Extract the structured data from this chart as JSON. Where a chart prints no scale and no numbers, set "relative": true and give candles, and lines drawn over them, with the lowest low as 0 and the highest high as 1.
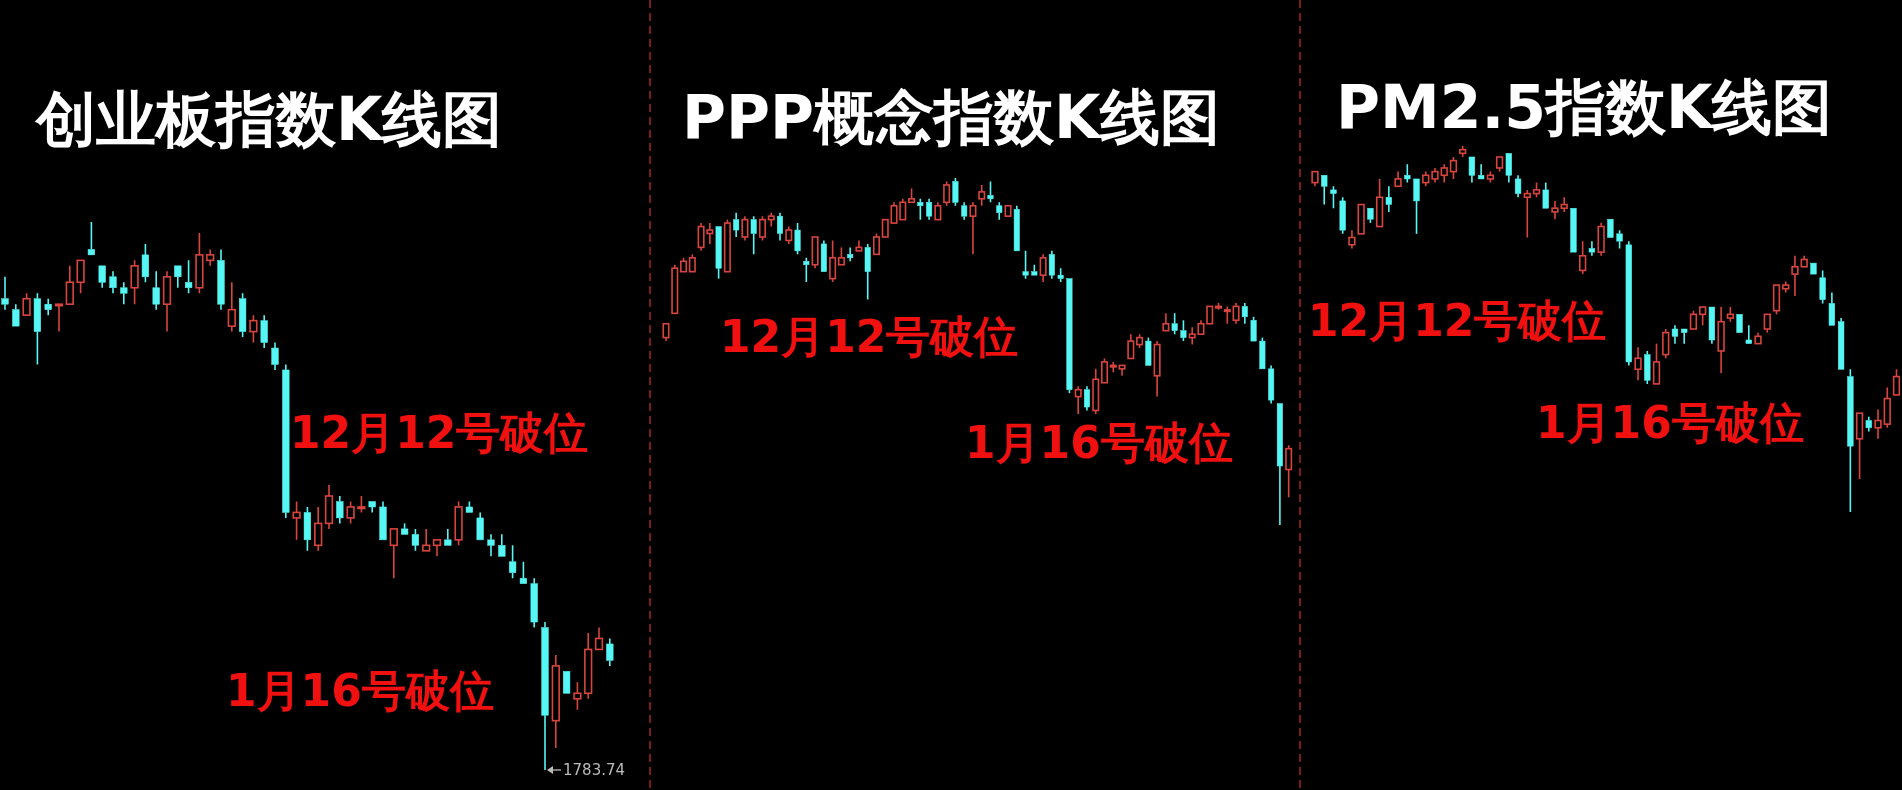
{
  "chart_data": [
    {
      "type": "candlestick",
      "title": "创业板指数K线图",
      "relative": true,
      "categories": [
        null,
        null,
        null,
        null,
        null,
        null,
        null,
        null,
        null,
        null,
        null,
        null,
        null,
        null,
        null,
        null,
        null,
        null,
        null,
        null,
        null,
        null,
        null,
        null,
        null,
        null,
        null,
        null,
        null,
        null,
        null,
        null,
        null,
        null,
        null,
        null,
        null,
        null,
        null,
        null,
        null,
        null,
        null,
        null,
        null,
        null,
        null,
        null,
        null,
        null,
        null,
        null,
        null,
        null,
        null,
        null,
        null
      ],
      "ohlc": [
        [
          0.86,
          0.9,
          0.84,
          0.85
        ],
        [
          0.84,
          0.85,
          0.81,
          0.81
        ],
        [
          0.83,
          0.87,
          0.83,
          0.86
        ],
        [
          0.86,
          0.87,
          0.74,
          0.8
        ],
        [
          0.85,
          0.86,
          0.83,
          0.84
        ],
        [
          0.85,
          0.85,
          0.8,
          0.85
        ],
        [
          0.85,
          0.92,
          0.85,
          0.89
        ],
        [
          0.89,
          0.93,
          0.87,
          0.93
        ],
        [
          0.95,
          1,
          0.94,
          0.94
        ],
        [
          0.92,
          0.92,
          0.88,
          0.89
        ],
        [
          0.9,
          0.91,
          0.87,
          0.88
        ],
        [
          0.88,
          0.89,
          0.85,
          0.87
        ],
        [
          0.88,
          0.93,
          0.85,
          0.92
        ],
        [
          0.94,
          0.96,
          0.89,
          0.9
        ],
        [
          0.88,
          0.91,
          0.84,
          0.85
        ],
        [
          0.85,
          0.91,
          0.8,
          0.9
        ],
        [
          0.92,
          0.92,
          0.88,
          0.9
        ],
        [
          0.89,
          0.93,
          0.87,
          0.88
        ],
        [
          0.88,
          0.98,
          0.87,
          0.94
        ],
        [
          0.93,
          0.95,
          0.92,
          0.94
        ],
        [
          0.93,
          0.95,
          0.84,
          0.85
        ],
        [
          0.81,
          0.89,
          0.8,
          0.84
        ],
        [
          0.86,
          0.87,
          0.79,
          0.8
        ],
        [
          0.8,
          0.83,
          0.78,
          0.82
        ],
        [
          0.82,
          0.83,
          0.77,
          0.78
        ],
        [
          0.77,
          0.78,
          0.73,
          0.74
        ],
        [
          0.73,
          0.74,
          0.46,
          0.47
        ],
        [
          0.46,
          0.49,
          0.42,
          0.47
        ],
        [
          0.47,
          0.48,
          0.4,
          0.42
        ],
        [
          0.41,
          0.48,
          0.4,
          0.45
        ],
        [
          0.45,
          0.52,
          0.44,
          0.5
        ],
        [
          0.49,
          0.5,
          0.45,
          0.46
        ],
        [
          0.46,
          0.49,
          0.45,
          0.48
        ],
        [
          0.48,
          0.5,
          0.47,
          0.48
        ],
        [
          0.49,
          0.49,
          0.47,
          0.48
        ],
        [
          0.48,
          0.49,
          0.42,
          0.42
        ],
        [
          0.41,
          0.44,
          0.35,
          0.44
        ],
        [
          0.44,
          0.45,
          0.43,
          0.43
        ],
        [
          0.43,
          0.44,
          0.4,
          0.41
        ],
        [
          0.4,
          0.44,
          0.4,
          0.41
        ],
        [
          0.41,
          0.42,
          0.39,
          0.42
        ],
        [
          0.42,
          0.44,
          0.41,
          0.41
        ],
        [
          0.42,
          0.49,
          0.41,
          0.48
        ],
        [
          0.48,
          0.49,
          0.47,
          0.47
        ],
        [
          0.46,
          0.47,
          0.42,
          0.42
        ],
        [
          0.42,
          0.43,
          0.39,
          0.41
        ],
        [
          0.41,
          0.43,
          0.39,
          0.39
        ],
        [
          0.38,
          0.41,
          0.35,
          0.36
        ],
        [
          0.35,
          0.38,
          0.34,
          0.34
        ],
        [
          0.34,
          0.35,
          0.26,
          0.27
        ],
        [
          0.26,
          0.27,
          0,
          0.1
        ],
        [
          0.09,
          0.21,
          0.04,
          0.19
        ],
        [
          0.18,
          0.18,
          0.14,
          0.14
        ],
        [
          0.13,
          0.16,
          0.11,
          0.14
        ],
        [
          0.14,
          0.25,
          0.13,
          0.22
        ],
        [
          0.22,
          0.26,
          0.22,
          0.24
        ],
        [
          0.23,
          0.24,
          0.19,
          0.2
        ]
      ],
      "annotations": [
        "12月12号破位",
        "1月16号破位",
        "1783.74"
      ]
    },
    {
      "type": "candlestick",
      "title": "PPP概念指数K线图",
      "relative": true,
      "categories": [
        null,
        null,
        null,
        null,
        null,
        null,
        null,
        null,
        null,
        null,
        null,
        null,
        null,
        null,
        null,
        null,
        null,
        null,
        null,
        null,
        null,
        null,
        null,
        null,
        null,
        null,
        null,
        null,
        null,
        null,
        null,
        null,
        null,
        null,
        null,
        null,
        null,
        null,
        null,
        null,
        null,
        null,
        null,
        null,
        null,
        null,
        null,
        null,
        null,
        null,
        null,
        null,
        null,
        null,
        null,
        null,
        null,
        null,
        null,
        null,
        null,
        null,
        null,
        null,
        null,
        null,
        null,
        null,
        null,
        null,
        null,
        null
      ],
      "ohlc": [
        [
          0.54,
          0.58,
          0.53,
          0.58
        ],
        [
          0.61,
          0.75,
          0.61,
          0.74
        ],
        [
          0.73,
          0.77,
          0.73,
          0.76
        ],
        [
          0.73,
          0.78,
          0.73,
          0.77
        ],
        [
          0.8,
          0.87,
          0.79,
          0.86
        ],
        [
          0.84,
          0.87,
          0.81,
          0.85
        ],
        [
          0.86,
          0.86,
          0.71,
          0.74
        ],
        [
          0.73,
          0.88,
          0.73,
          0.87
        ],
        [
          0.88,
          0.9,
          0.83,
          0.85
        ],
        [
          0.83,
          0.89,
          0.82,
          0.88
        ],
        [
          0.88,
          0.89,
          0.78,
          0.84
        ],
        [
          0.83,
          0.89,
          0.82,
          0.88
        ],
        [
          0.88,
          0.9,
          0.86,
          0.89
        ],
        [
          0.89,
          0.9,
          0.82,
          0.84
        ],
        [
          0.82,
          0.86,
          0.81,
          0.85
        ],
        [
          0.85,
          0.87,
          0.78,
          0.79
        ],
        [
          0.76,
          0.77,
          0.7,
          0.75
        ],
        [
          0.75,
          0.83,
          0.74,
          0.83
        ],
        [
          0.81,
          0.82,
          0.73,
          0.73
        ],
        [
          0.71,
          0.82,
          0.7,
          0.77
        ],
        [
          0.75,
          0.8,
          0.75,
          0.77
        ],
        [
          0.78,
          0.8,
          0.76,
          0.77
        ],
        [
          0.79,
          0.82,
          0.79,
          0.8
        ],
        [
          0.8,
          0.81,
          0.65,
          0.73
        ],
        [
          0.78,
          0.84,
          0.78,
          0.83
        ],
        [
          0.83,
          0.88,
          0.83,
          0.88
        ],
        [
          0.87,
          0.93,
          0.87,
          0.92
        ],
        [
          0.88,
          0.94,
          0.88,
          0.93
        ],
        [
          0.93,
          0.97,
          0.93,
          0.94
        ],
        [
          0.93,
          0.94,
          0.88,
          0.92
        ],
        [
          0.93,
          0.94,
          0.88,
          0.89
        ],
        [
          0.88,
          0.93,
          0.88,
          0.92
        ],
        [
          0.93,
          0.99,
          0.92,
          0.98
        ],
        [
          0.99,
          1,
          0.92,
          0.93
        ],
        [
          0.92,
          0.93,
          0.88,
          0.89
        ],
        [
          0.89,
          0.93,
          0.78,
          0.92
        ],
        [
          0.94,
          0.98,
          0.92,
          0.96
        ],
        [
          0.95,
          0.99,
          0.93,
          0.94
        ],
        [
          0.92,
          0.93,
          0.88,
          0.9
        ],
        [
          0.89,
          0.92,
          0.89,
          0.92
        ],
        [
          0.91,
          0.92,
          0.79,
          0.79
        ],
        [
          0.73,
          0.79,
          0.71,
          0.72
        ],
        [
          0.73,
          0.75,
          0.72,
          0.72
        ],
        [
          0.72,
          0.78,
          0.7,
          0.77
        ],
        [
          0.78,
          0.79,
          0.71,
          0.72
        ],
        [
          0.72,
          0.74,
          0.7,
          0.71
        ],
        [
          0.71,
          0.71,
          0.38,
          0.39
        ],
        [
          0.37,
          0.4,
          0.32,
          0.39
        ],
        [
          0.39,
          0.4,
          0.33,
          0.34
        ],
        [
          0.33,
          0.45,
          0.32,
          0.42
        ],
        [
          0.41,
          0.48,
          0.41,
          0.47
        ],
        [
          0.46,
          0.47,
          0.44,
          0.46
        ],
        [
          0.45,
          0.46,
          0.43,
          0.46
        ],
        [
          0.48,
          0.55,
          0.48,
          0.53
        ],
        [
          0.52,
          0.55,
          0.51,
          0.54
        ],
        [
          0.53,
          0.54,
          0.46,
          0.46
        ],
        [
          0.43,
          0.53,
          0.37,
          0.52
        ],
        [
          0.56,
          0.61,
          0.56,
          0.58
        ],
        [
          0.58,
          0.61,
          0.55,
          0.56
        ],
        [
          0.56,
          0.59,
          0.53,
          0.54
        ],
        [
          0.54,
          0.57,
          0.52,
          0.55
        ],
        [
          0.55,
          0.59,
          0.55,
          0.58
        ],
        [
          0.58,
          0.63,
          0.58,
          0.63
        ],
        [
          0.63,
          0.64,
          0.62,
          0.63
        ],
        [
          0.62,
          0.63,
          0.58,
          0.62
        ],
        [
          0.59,
          0.64,
          0.58,
          0.63
        ],
        [
          0.63,
          0.64,
          0.58,
          0.6
        ],
        [
          0.59,
          0.6,
          0.53,
          0.53
        ],
        [
          0.53,
          0.54,
          0.45,
          0.45
        ],
        [
          0.45,
          0.46,
          0.35,
          0.36
        ],
        [
          0.35,
          0.35,
          0,
          0.17
        ],
        [
          0.16,
          0.23,
          0.08,
          0.22
        ]
      ],
      "annotations": [
        "12月12号破位",
        "1月16号破位"
      ]
    },
    {
      "type": "candlestick",
      "title": "PM2.5指数K线图",
      "relative": true,
      "categories": [
        null,
        null,
        null,
        null,
        null,
        null,
        null,
        null,
        null,
        null,
        null,
        null,
        null,
        null,
        null,
        null,
        null,
        null,
        null,
        null,
        null,
        null,
        null,
        null,
        null,
        null,
        null,
        null,
        null,
        null,
        null,
        null,
        null,
        null,
        null,
        null,
        null,
        null,
        null,
        null,
        null,
        null,
        null,
        null,
        null,
        null,
        null,
        null,
        null,
        null,
        null,
        null,
        null,
        null,
        null,
        null,
        null,
        null,
        null,
        null,
        null,
        null,
        null,
        null
      ],
      "ohlc": [
        [
          0.9,
          0.93,
          0.89,
          0.93
        ],
        [
          0.92,
          0.92,
          0.84,
          0.89
        ],
        [
          0.88,
          0.89,
          0.83,
          0.87
        ],
        [
          0.85,
          0.86,
          0.76,
          0.77
        ],
        [
          0.73,
          0.77,
          0.72,
          0.75
        ],
        [
          0.76,
          0.84,
          0.76,
          0.84
        ],
        [
          0.83,
          0.83,
          0.79,
          0.8
        ],
        [
          0.78,
          0.91,
          0.78,
          0.86
        ],
        [
          0.86,
          0.89,
          0.82,
          0.84
        ],
        [
          0.89,
          0.93,
          0.89,
          0.91
        ],
        [
          0.92,
          0.95,
          0.9,
          0.91
        ],
        [
          0.91,
          0.91,
          0.76,
          0.85
        ],
        [
          0.9,
          0.93,
          0.89,
          0.92
        ],
        [
          0.91,
          0.94,
          0.9,
          0.93
        ],
        [
          0.92,
          0.95,
          0.9,
          0.94
        ],
        [
          0.93,
          0.97,
          0.91,
          0.96
        ],
        [
          0.98,
          1,
          0.97,
          0.99
        ],
        [
          0.97,
          0.97,
          0.9,
          0.92
        ],
        [
          0.92,
          0.95,
          0.91,
          0.91
        ],
        [
          0.91,
          0.93,
          0.9,
          0.92
        ],
        [
          0.94,
          0.97,
          0.93,
          0.97
        ],
        [
          0.98,
          0.98,
          0.9,
          0.92
        ],
        [
          0.91,
          0.92,
          0.86,
          0.87
        ],
        [
          0.86,
          0.88,
          0.75,
          0.87
        ],
        [
          0.87,
          0.9,
          0.86,
          0.88
        ],
        [
          0.88,
          0.9,
          0.83,
          0.83
        ],
        [
          0.82,
          0.85,
          0.8,
          0.83
        ],
        [
          0.83,
          0.86,
          0.82,
          0.84
        ],
        [
          0.83,
          0.83,
          0.71,
          0.71
        ],
        [
          0.66,
          0.74,
          0.65,
          0.7
        ],
        [
          0.72,
          0.74,
          0.7,
          0.71
        ],
        [
          0.71,
          0.79,
          0.7,
          0.78
        ],
        [
          0.8,
          0.8,
          0.75,
          0.75
        ],
        [
          0.76,
          0.77,
          0.72,
          0.74
        ],
        [
          0.73,
          0.74,
          0.4,
          0.41
        ],
        [
          0.39,
          0.45,
          0.36,
          0.42
        ],
        [
          0.43,
          0.44,
          0.35,
          0.36
        ],
        [
          0.35,
          0.46,
          0.35,
          0.41
        ],
        [
          0.43,
          0.5,
          0.42,
          0.49
        ],
        [
          0.5,
          0.51,
          0.46,
          0.48
        ],
        [
          0.5,
          0.5,
          0.46,
          0.49
        ],
        [
          0.5,
          0.55,
          0.5,
          0.54
        ],
        [
          0.54,
          0.56,
          0.51,
          0.56
        ],
        [
          0.56,
          0.56,
          0.46,
          0.47
        ],
        [
          0.44,
          0.56,
          0.38,
          0.52
        ],
        [
          0.53,
          0.56,
          0.52,
          0.54
        ],
        [
          0.54,
          0.54,
          0.49,
          0.49
        ],
        [
          0.47,
          0.51,
          0.46,
          0.46
        ],
        [
          0.46,
          0.49,
          0.46,
          0.48
        ],
        [
          0.5,
          0.54,
          0.49,
          0.54
        ],
        [
          0.55,
          0.62,
          0.54,
          0.62
        ],
        [
          0.61,
          0.63,
          0.6,
          0.62
        ],
        [
          0.65,
          0.7,
          0.59,
          0.67
        ],
        [
          0.67,
          0.7,
          0.67,
          0.69
        ],
        [
          0.68,
          0.68,
          0.65,
          0.65
        ],
        [
          0.64,
          0.66,
          0.57,
          0.58
        ],
        [
          0.57,
          0.6,
          0.51,
          0.51
        ],
        [
          0.52,
          0.53,
          0.39,
          0.39
        ],
        [
          0.37,
          0.39,
          0,
          0.18
        ],
        [
          0.2,
          0.27,
          0.09,
          0.27
        ],
        [
          0.25,
          0.26,
          0.22,
          0.23
        ],
        [
          0.23,
          0.28,
          0.2,
          0.25
        ],
        [
          0.24,
          0.34,
          0.23,
          0.31
        ],
        [
          0.32,
          0.39,
          0.32,
          0.37
        ]
      ],
      "annotations": [
        "12月12号破位",
        "1月16号破位"
      ]
    }
  ]
}
